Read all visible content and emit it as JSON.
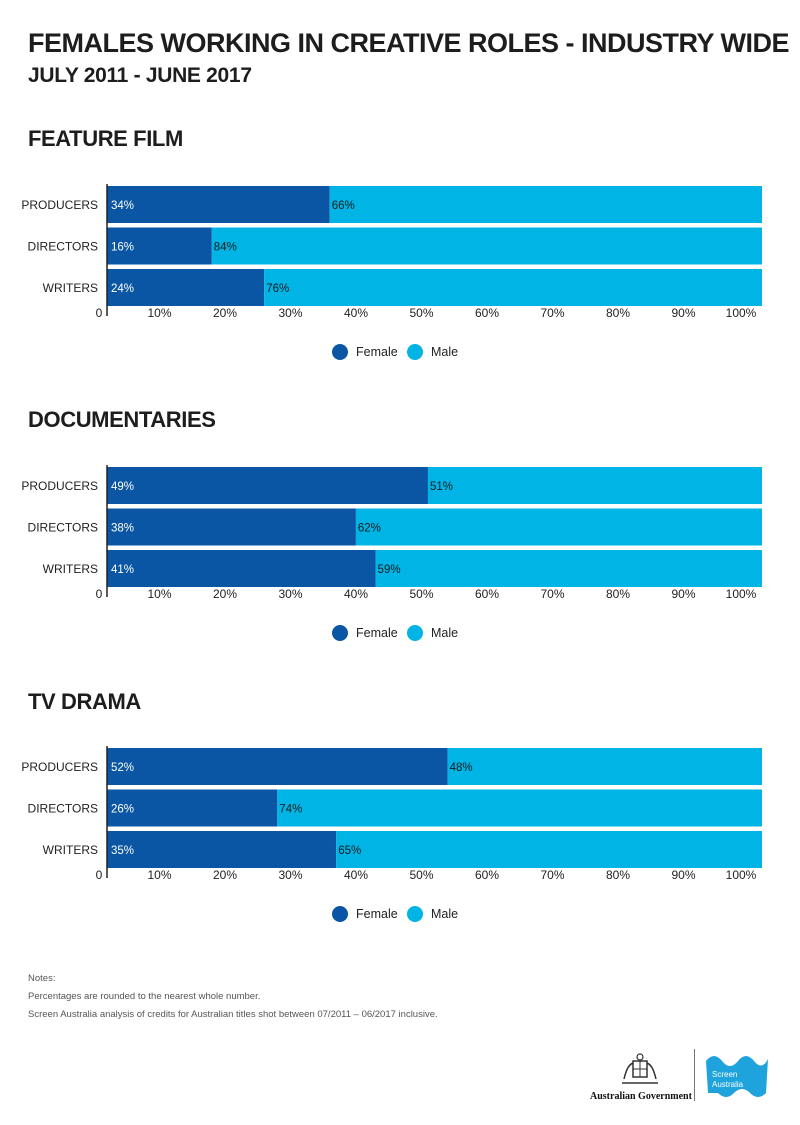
{
  "title": "FEMALES WORKING IN CREATIVE ROLES - INDUSTRY WIDE",
  "subtitle": "JULY 2011 - JUNE 2017",
  "colors": {
    "female": "#0a56a4",
    "male": "#00b4e6",
    "axis": "#222222"
  },
  "chart_data": [
    {
      "type": "bar",
      "title": "FEATURE FILM",
      "orientation": "horizontal",
      "stacked": true,
      "categories": [
        "PRODUCERS",
        "DIRECTORS",
        "WRITERS"
      ],
      "series": [
        {
          "name": "Female",
          "values": [
            34,
            16,
            24
          ],
          "labels": [
            "34%",
            "16%",
            "24%"
          ]
        },
        {
          "name": "Male",
          "values": [
            66,
            84,
            76
          ],
          "labels": [
            "66%",
            "84%",
            "76%"
          ]
        }
      ],
      "xlim": [
        0,
        100
      ],
      "x_ticks": [
        "0",
        "10%",
        "20%",
        "30%",
        "40%",
        "50%",
        "60%",
        "70%",
        "80%",
        "90%",
        "100%"
      ],
      "legend": "bottom-center",
      "grid": false
    },
    {
      "type": "bar",
      "title": "DOCUMENTARIES",
      "orientation": "horizontal",
      "stacked": true,
      "categories": [
        "PRODUCERS",
        "DIRECTORS",
        "WRITERS"
      ],
      "series": [
        {
          "name": "Female",
          "values": [
            49,
            38,
            41
          ],
          "labels": [
            "49%",
            "38%",
            "41%"
          ]
        },
        {
          "name": "Male",
          "values": [
            51,
            62,
            59
          ],
          "labels": [
            "51%",
            "62%",
            "59%"
          ]
        }
      ],
      "xlim": [
        0,
        100
      ],
      "x_ticks": [
        "0",
        "10%",
        "20%",
        "30%",
        "40%",
        "50%",
        "60%",
        "70%",
        "80%",
        "90%",
        "100%"
      ],
      "legend": "bottom-center",
      "grid": false
    },
    {
      "type": "bar",
      "title": "TV DRAMA",
      "orientation": "horizontal",
      "stacked": true,
      "categories": [
        "PRODUCERS",
        "DIRECTORS",
        "WRITERS"
      ],
      "series": [
        {
          "name": "Female",
          "values": [
            52,
            26,
            35
          ],
          "labels": [
            "52%",
            "26%",
            "35%"
          ]
        },
        {
          "name": "Male",
          "values": [
            48,
            74,
            65
          ],
          "labels": [
            "48%",
            "74%",
            "65%"
          ]
        }
      ],
      "xlim": [
        0,
        100
      ],
      "x_ticks": [
        "0",
        "10%",
        "20%",
        "30%",
        "40%",
        "50%",
        "60%",
        "70%",
        "80%",
        "90%",
        "100%"
      ],
      "legend": "bottom-center",
      "grid": false
    }
  ],
  "notes": {
    "heading": "Notes:",
    "lines": [
      "Percentages are rounded to the nearest whole number.",
      "Screen Australia analysis of credits for Australian titles shot between 07/2011 – 06/2017 inclusive."
    ]
  },
  "footer": {
    "gov_text": "Australian Government",
    "sa_line1": "Screen",
    "sa_line2": "Australia"
  }
}
